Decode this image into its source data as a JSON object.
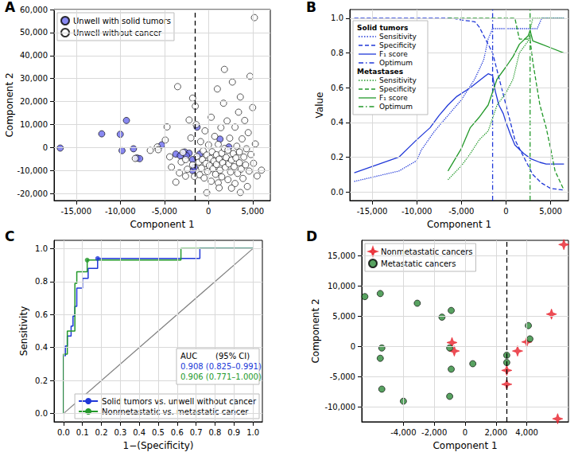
{
  "chart_data": [
    {
      "title": "A",
      "type": "scatter",
      "xlabel": "Component 1",
      "ylabel": "Component 2",
      "grid": true,
      "legend": "upper left",
      "xlim": [
        -17500,
        7000
      ],
      "xticks": [
        {
          "value": -15000,
          "label": "-15,000"
        },
        {
          "value": -10000,
          "label": "-10,000"
        },
        {
          "value": -5000,
          "label": "-5,000"
        },
        0,
        {
          "value": 5000,
          "label": "5,000"
        }
      ],
      "ylim": [
        -23000,
        60000
      ],
      "yticks": [
        {
          "value": -20000,
          "label": "-20,000"
        },
        {
          "value": -10000,
          "label": "-10,000"
        },
        0,
        {
          "value": 10000,
          "label": "10,000"
        },
        {
          "value": 20000,
          "label": "20,000"
        },
        {
          "value": 30000,
          "label": "30,000"
        },
        {
          "value": 40000,
          "label": "40,000"
        },
        {
          "value": 50000,
          "label": "50,000"
        },
        {
          "value": 60000,
          "label": "60,000"
        }
      ],
      "threshold": -1500,
      "series": [
        {
          "name": "Unwell with solid tumors",
          "color": "#6b6bee",
          "marker": "circle",
          "x": [
            -16800,
            -12100,
            -10000,
            -9300,
            -9800,
            -8500,
            -8100,
            -7800,
            -5300,
            -3700,
            -3200,
            -2700,
            -2200,
            -1800,
            -1800,
            -1600,
            -1300,
            -1000,
            1300,
            2300,
            -2500
          ],
          "values": [
            -200,
            6000,
            5800,
            11800,
            -1300,
            -500,
            -4500,
            -4800,
            1200,
            -2800,
            -3500,
            -1900,
            -2400,
            -5200,
            -10000,
            -8600,
            8900,
            -2800,
            3700,
            300,
            -3500
          ]
        },
        {
          "name": "Unwell without cancer",
          "color": "#ffffff",
          "marker": "circle",
          "x": [
            -8300,
            -6600,
            -5800,
            -5700,
            -4900,
            -4400,
            -4200,
            -3700,
            -3300,
            -3100,
            -2900,
            -2600,
            -2400,
            -2200,
            -2000,
            -1800,
            -1600,
            -1500,
            -1400,
            -1300,
            -1100,
            -1000,
            -900,
            -800,
            -700,
            -600,
            -500,
            -400,
            -300,
            -200,
            -100,
            0,
            100,
            200,
            300,
            300,
            400,
            500,
            600,
            700,
            800,
            900,
            900,
            1000,
            1100,
            1100,
            1200,
            1300,
            1400,
            1500,
            1500,
            1600,
            1700,
            1800,
            1900,
            2000,
            2100,
            2200,
            2200,
            2300,
            2400,
            2500,
            2600,
            2700,
            2800,
            2900,
            3000,
            3000,
            3100,
            3200,
            3300,
            3400,
            3500,
            3500,
            3600,
            3700,
            3800,
            3900,
            4000,
            4100,
            4200,
            4300,
            4400,
            4500,
            4600,
            4700,
            4800,
            5000,
            5100,
            5200,
            5300,
            5500,
            6000,
            3600,
            -200,
            1800,
            -2600,
            1200,
            2600,
            -3500,
            -1800,
            -4700
          ],
          "values": [
            -4700,
            -1200,
            300,
            -900,
            3300,
            -4000,
            -8500,
            -15000,
            -11000,
            -6200,
            -2100,
            -5200,
            -9400,
            12000,
            4200,
            -7500,
            -12500,
            18000,
            10000,
            -3900,
            -6300,
            -11800,
            2600,
            -8900,
            -5200,
            -1400,
            -13200,
            7300,
            -6900,
            -3200,
            -10400,
            1200,
            -7800,
            -4700,
            13200,
            -14600,
            -1800,
            -9200,
            -5800,
            4900,
            -11600,
            -3100,
            -7300,
            25500,
            -15300,
            1400,
            -5000,
            -9800,
            8700,
            -2400,
            -12700,
            -6600,
            19300,
            -400,
            -8600,
            -4300,
            11600,
            -13900,
            -1100,
            -7100,
            4100,
            -10600,
            -5400,
            28500,
            -2600,
            -8300,
            8900,
            -15600,
            -4500,
            600,
            -11200,
            15400,
            -6600,
            -1900,
            22000,
            -9300,
            3800,
            -13400,
            -4100,
            11800,
            -7500,
            -500,
            -16900,
            6500,
            -10200,
            31000,
            -3000,
            17400,
            -6800,
            56500,
            1600,
            -12300,
            -9800,
            -19500,
            -19600,
            34000,
            -12400,
            -17500,
            -17600,
            26500,
            21500,
            9000
          ]
        }
      ]
    },
    {
      "title": "B",
      "type": "line",
      "xlabel": "Component 1",
      "ylabel": "Value",
      "grid": true,
      "legend": "upper left",
      "xlim": [
        -17500,
        7000
      ],
      "xticks": [
        {
          "value": -15000,
          "label": "-15,000"
        },
        {
          "value": -10000,
          "label": "-10,000"
        },
        {
          "value": -5000,
          "label": "-5,000"
        },
        0,
        {
          "value": 5000,
          "label": "5,000"
        }
      ],
      "ylim": [
        -0.05,
        1.05
      ],
      "yticks": [
        {
          "value": 0,
          "label": "0.0"
        },
        0.2,
        0.4,
        0.6,
        0.8,
        {
          "value": 1,
          "label": "1.0"
        }
      ],
      "groups": [
        {
          "name": "Solid tumors",
          "series": [
            {
              "name": "Sensitivity",
              "color": "#2038d8",
              "line_style": "dotted",
              "x": [
                -17000,
                -12000,
                -10000,
                -9500,
                -8000,
                -7000,
                -6000,
                -5000,
                -3500,
                -2500,
                -2000,
                -1500,
                3500,
                4000,
                6500
              ],
              "values": [
                0.06,
                0.12,
                0.18,
                0.24,
                0.35,
                0.41,
                0.47,
                0.53,
                0.65,
                0.76,
                0.88,
                0.94,
                0.94,
                1,
                1
              ]
            },
            {
              "name": "Specificity",
              "color": "#2038d8",
              "line_style": "dashed",
              "x": [
                -17000,
                -6000,
                -5000,
                -3500,
                -3000,
                -2500,
                -2000,
                -1500,
                -1000,
                -500,
                0,
                500,
                1000,
                2000,
                3000,
                4000,
                5000,
                6500
              ],
              "values": [
                1,
                1,
                0.99,
                0.98,
                0.95,
                0.9,
                0.85,
                0.8,
                0.7,
                0.6,
                0.5,
                0.4,
                0.3,
                0.2,
                0.1,
                0.05,
                0.02,
                0.01
              ]
            },
            {
              "name": "F₁ score",
              "color": "#2038d8",
              "line_style": "solid",
              "x": [
                -17000,
                -12000,
                -10000,
                -8500,
                -7500,
                -6500,
                -5500,
                -4000,
                -2500,
                -2000,
                -1500,
                -1200,
                -800,
                -300,
                0,
                500,
                1000,
                2000,
                2800,
                3800,
                4500,
                6500
              ],
              "values": [
                0.11,
                0.2,
                0.3,
                0.37,
                0.44,
                0.5,
                0.55,
                0.6,
                0.66,
                0.68,
                0.67,
                0.58,
                0.5,
                0.45,
                0.4,
                0.33,
                0.27,
                0.22,
                0.19,
                0.17,
                0.16,
                0.16
              ]
            },
            {
              "name": "Optimum",
              "color": "#2038d8",
              "line_style": "dashdot",
              "x": [
                -1500,
                -1500
              ],
              "values": [
                -0.05,
                1.05
              ]
            }
          ]
        },
        {
          "name": "Metastases",
          "series": [
            {
              "name": "Sensitivity",
              "color": "#23992a",
              "line_style": "dotted",
              "x": [
                -6500,
                -5000,
                -4000,
                -3000,
                -2000,
                -1000,
                0,
                800,
                1500,
                2500,
                2700,
                3000,
                6500
              ],
              "values": [
                0.07,
                0.15,
                0.22,
                0.3,
                0.35,
                0.5,
                0.57,
                0.65,
                0.8,
                0.87,
                0.93,
                1,
                1
              ]
            },
            {
              "name": "Specificity",
              "color": "#23992a",
              "line_style": "dashed",
              "x": [
                -6500,
                1000,
                1500,
                2700,
                3000,
                3800,
                4500,
                5000,
                5500,
                6500
              ],
              "values": [
                1,
                1,
                0.88,
                0.88,
                0.75,
                0.5,
                0.37,
                0.25,
                0.12,
                0.01
              ]
            },
            {
              "name": "F₁ score",
              "color": "#23992a",
              "line_style": "solid",
              "x": [
                -6500,
                -5000,
                -4000,
                -3000,
                -2000,
                -1000,
                0,
                800,
                1500,
                2500,
                2700,
                3000,
                4000,
                5000,
                6500
              ],
              "values": [
                0.12,
                0.25,
                0.37,
                0.43,
                0.5,
                0.65,
                0.72,
                0.78,
                0.85,
                0.9,
                0.93,
                0.87,
                0.85,
                0.83,
                0.8
              ]
            },
            {
              "name": "Optimum",
              "color": "#23992a",
              "line_style": "dashdot",
              "x": [
                2700,
                2700
              ],
              "values": [
                -0.05,
                1.05
              ]
            }
          ]
        }
      ]
    },
    {
      "title": "C",
      "type": "line",
      "xlabel": "1−(Specificity)",
      "ylabel": "Sensitivity",
      "grid": true,
      "legend": "lower right",
      "xlim": [
        -0.05,
        1.05
      ],
      "xticks": [
        {
          "value": 0,
          "label": "0.0"
        },
        0.1,
        0.2,
        0.3,
        0.4,
        0.5,
        0.6,
        0.7,
        0.8,
        0.9,
        {
          "value": 1,
          "label": "1.0"
        }
      ],
      "ylim": [
        -0.05,
        1.05
      ],
      "yticks": [
        {
          "value": 0,
          "label": "0.0"
        },
        0.2,
        0.4,
        0.6,
        0.8,
        {
          "value": 1,
          "label": "1.0"
        }
      ],
      "annotation": [
        "AUC",
        "(95% CI)"
      ],
      "reference_line": {
        "color": "#808080",
        "x": [
          0,
          1
        ],
        "values": [
          0,
          1
        ]
      },
      "series": [
        {
          "name": "Solid tumors vs. unwell without cancer",
          "color": "#2038d8",
          "line_style": "solid",
          "auc_label": "0.908 (0.825–0.991)",
          "optimum": {
            "x": 0.18,
            "y": 0.94
          },
          "x": [
            0,
            0,
            0.01,
            0.01,
            0.02,
            0.02,
            0.04,
            0.04,
            0.05,
            0.05,
            0.06,
            0.06,
            0.07,
            0.07,
            0.1,
            0.1,
            0.13,
            0.13,
            0.18,
            0.18,
            0.72,
            0.72,
            1
          ],
          "values": [
            0,
            0.35,
            0.35,
            0.41,
            0.41,
            0.47,
            0.47,
            0.53,
            0.53,
            0.59,
            0.59,
            0.65,
            0.65,
            0.76,
            0.76,
            0.82,
            0.82,
            0.88,
            0.88,
            0.94,
            0.94,
            1,
            1
          ]
        },
        {
          "name": "Nonmetastatic vs. metastatic cancer",
          "color": "#23992a",
          "line_style": "solid",
          "auc_label": "0.906 (0.771–1.000)",
          "optimum": {
            "x": 0.125,
            "y": 0.93
          },
          "x": [
            0,
            0,
            0.02,
            0.02,
            0.06,
            0.06,
            0.07,
            0.07,
            0.125,
            0.125,
            0.62,
            0.62,
            1
          ],
          "values": [
            0,
            0.36,
            0.36,
            0.5,
            0.5,
            0.79,
            0.79,
            0.86,
            0.86,
            0.93,
            0.93,
            1,
            1
          ]
        }
      ]
    },
    {
      "title": "D",
      "type": "scatter",
      "xlabel": "Component 1",
      "ylabel": "Component 2",
      "grid": true,
      "legend": "upper left",
      "xlim": [
        -6700,
        6700
      ],
      "xticks": [
        {
          "value": -4000,
          "label": "-4,000"
        },
        {
          "value": -2000,
          "label": "-2,000"
        },
        0,
        {
          "value": 2000,
          "label": "2,000"
        },
        {
          "value": 4000,
          "label": "4,000"
        }
      ],
      "ylim": [
        -12500,
        17500
      ],
      "yticks": [
        {
          "value": -10000,
          "label": "-10,000"
        },
        {
          "value": -5000,
          "label": "-5,000"
        },
        0,
        {
          "value": 5000,
          "label": "5,000"
        },
        {
          "value": 10000,
          "label": "10,000"
        },
        {
          "value": 15000,
          "label": "15,000"
        }
      ],
      "threshold": 2700,
      "series": [
        {
          "name": "Nonmetastatic cancers",
          "color": "#e8202a",
          "marker": "star",
          "x": [
            -850,
            -700,
            2700,
            2700,
            3400,
            4000,
            5600,
            6400,
            6000
          ],
          "values": [
            600,
            -800,
            -4000,
            -6300,
            -800,
            700,
            5300,
            16800,
            -12000
          ]
        },
        {
          "name": "Metastatic cancers",
          "color": "#2e8b3a",
          "marker": "circle",
          "x": [
            -6500,
            -5500,
            -5400,
            -5500,
            -5400,
            -4000,
            -3100,
            -1500,
            -900,
            -1000,
            -900,
            -1000,
            500,
            2700,
            2700,
            4100,
            4200
          ],
          "values": [
            8200,
            8700,
            -300,
            -2000,
            -7100,
            -9100,
            7100,
            4800,
            5900,
            -300,
            -3800,
            -8300,
            -2900,
            -1500,
            -2700,
            3400,
            1200
          ]
        }
      ]
    }
  ]
}
